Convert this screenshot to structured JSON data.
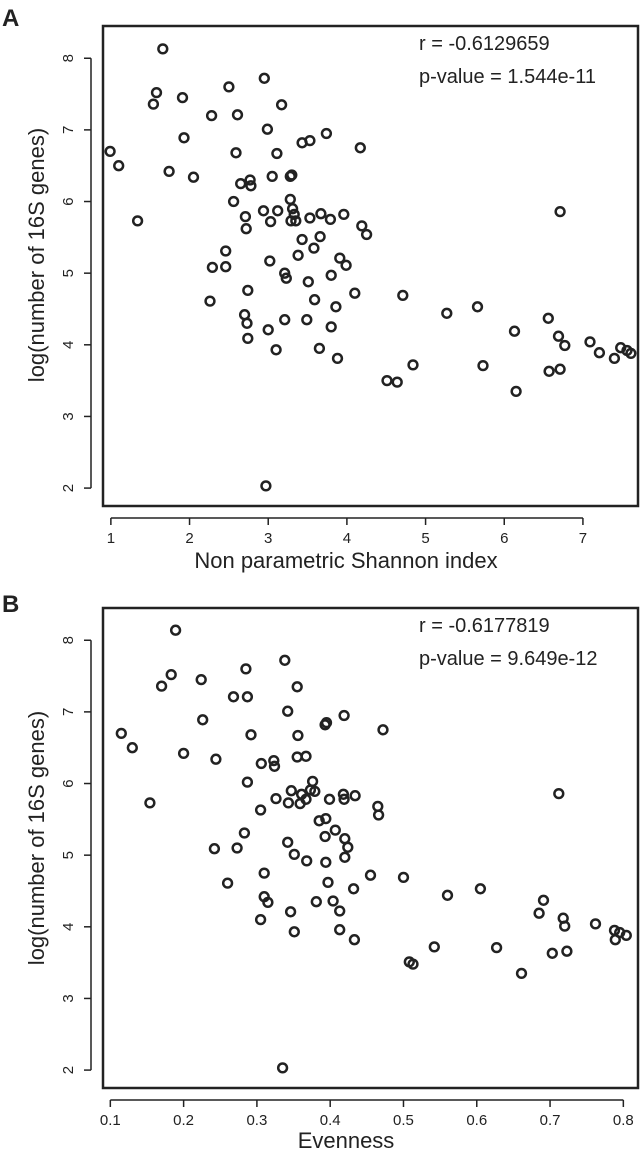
{
  "panels": [
    {
      "label": "A",
      "annotation": {
        "r": "r = -0.6129659",
        "p": "p-value = 1.544e-11"
      }
    },
    {
      "label": "B",
      "annotation": {
        "r": "r = -0.6177819",
        "p": "p-value = 9.649e-12"
      }
    }
  ],
  "chart_data": [
    {
      "type": "scatter",
      "title": "",
      "xlabel": "Non parametric Shannon index",
      "ylabel": "log(number of 16S genes)",
      "xlim": [
        0.9,
        7.7
      ],
      "ylim": [
        1.75,
        8.45
      ],
      "xticks": [
        1,
        2,
        3,
        4,
        5,
        6,
        7
      ],
      "yticks": [
        2,
        3,
        4,
        5,
        6,
        7,
        8
      ],
      "grid": false,
      "marker": "open-circle",
      "color": "#222222",
      "points": [
        [
          1.66,
          8.13
        ],
        [
          1.58,
          7.52
        ],
        [
          1.54,
          7.36
        ],
        [
          1.91,
          7.45
        ],
        [
          2.5,
          7.6
        ],
        [
          2.95,
          7.72
        ],
        [
          3.17,
          7.35
        ],
        [
          2.28,
          7.2
        ],
        [
          2.61,
          7.21
        ],
        [
          2.99,
          7.01
        ],
        [
          1.93,
          6.89
        ],
        [
          3.53,
          6.85
        ],
        [
          3.43,
          6.82
        ],
        [
          3.74,
          6.95
        ],
        [
          4.17,
          6.75
        ],
        [
          0.99,
          6.7
        ],
        [
          1.1,
          6.5
        ],
        [
          1.74,
          6.42
        ],
        [
          2.05,
          6.34
        ],
        [
          2.59,
          6.68
        ],
        [
          3.11,
          6.67
        ],
        [
          3.3,
          6.37
        ],
        [
          3.28,
          6.35
        ],
        [
          3.05,
          6.35
        ],
        [
          2.77,
          6.3
        ],
        [
          2.65,
          6.25
        ],
        [
          2.78,
          6.22
        ],
        [
          3.28,
          6.03
        ],
        [
          2.56,
          6.0
        ],
        [
          1.34,
          5.73
        ],
        [
          2.94,
          5.87
        ],
        [
          3.12,
          5.87
        ],
        [
          3.31,
          5.9
        ],
        [
          3.33,
          5.82
        ],
        [
          3.29,
          5.73
        ],
        [
          3.35,
          5.73
        ],
        [
          3.03,
          5.72
        ],
        [
          2.71,
          5.79
        ],
        [
          2.72,
          5.62
        ],
        [
          3.53,
          5.77
        ],
        [
          3.67,
          5.83
        ],
        [
          3.79,
          5.75
        ],
        [
          3.96,
          5.82
        ],
        [
          4.19,
          5.66
        ],
        [
          4.25,
          5.54
        ],
        [
          3.66,
          5.51
        ],
        [
          3.43,
          5.47
        ],
        [
          3.58,
          5.35
        ],
        [
          2.46,
          5.31
        ],
        [
          3.38,
          5.25
        ],
        [
          3.91,
          5.21
        ],
        [
          3.99,
          5.11
        ],
        [
          2.29,
          5.08
        ],
        [
          2.46,
          5.09
        ],
        [
          3.02,
          5.17
        ],
        [
          3.21,
          5.0
        ],
        [
          3.23,
          4.93
        ],
        [
          3.51,
          4.88
        ],
        [
          3.8,
          4.97
        ],
        [
          2.74,
          4.76
        ],
        [
          2.26,
          4.61
        ],
        [
          3.59,
          4.63
        ],
        [
          4.1,
          4.72
        ],
        [
          3.86,
          4.53
        ],
        [
          4.71,
          4.69
        ],
        [
          5.27,
          4.44
        ],
        [
          5.66,
          4.53
        ],
        [
          6.56,
          4.37
        ],
        [
          2.7,
          4.42
        ],
        [
          2.73,
          4.3
        ],
        [
          3.21,
          4.35
        ],
        [
          3.49,
          4.35
        ],
        [
          3.8,
          4.25
        ],
        [
          3.0,
          4.21
        ],
        [
          2.74,
          4.09
        ],
        [
          3.1,
          3.93
        ],
        [
          3.65,
          3.95
        ],
        [
          3.88,
          3.81
        ],
        [
          6.13,
          4.19
        ],
        [
          6.69,
          4.12
        ],
        [
          7.09,
          4.04
        ],
        [
          4.84,
          3.72
        ],
        [
          5.73,
          3.71
        ],
        [
          6.77,
          3.99
        ],
        [
          7.21,
          3.89
        ],
        [
          7.48,
          3.96
        ],
        [
          7.56,
          3.92
        ],
        [
          7.61,
          3.88
        ],
        [
          7.4,
          3.81
        ],
        [
          6.57,
          3.63
        ],
        [
          6.71,
          3.66
        ],
        [
          4.51,
          3.5
        ],
        [
          4.64,
          3.48
        ],
        [
          6.15,
          3.35
        ],
        [
          6.71,
          5.86
        ],
        [
          2.97,
          2.03
        ]
      ]
    },
    {
      "type": "scatter",
      "title": "",
      "xlabel": "Evenness",
      "ylabel": "log(number of 16S genes)",
      "xlim": [
        0.09,
        0.82
      ],
      "ylim": [
        1.75,
        8.45
      ],
      "xticks": [
        0.1,
        0.2,
        0.3,
        0.4,
        0.5,
        0.6,
        0.7,
        0.8
      ],
      "xtick_labels": [
        "0.1",
        "0.2",
        "0.3",
        "0.4",
        "0.5",
        "0.6",
        "0.7",
        "0.8"
      ],
      "yticks": [
        2,
        3,
        4,
        5,
        6,
        7,
        8
      ],
      "grid": false,
      "marker": "open-circle",
      "color": "#222222",
      "points": [
        [
          0.189,
          8.14
        ],
        [
          0.183,
          7.52
        ],
        [
          0.17,
          7.36
        ],
        [
          0.224,
          7.45
        ],
        [
          0.285,
          7.6
        ],
        [
          0.338,
          7.72
        ],
        [
          0.355,
          7.35
        ],
        [
          0.268,
          7.21
        ],
        [
          0.287,
          7.21
        ],
        [
          0.342,
          7.01
        ],
        [
          0.226,
          6.89
        ],
        [
          0.393,
          6.82
        ],
        [
          0.395,
          6.85
        ],
        [
          0.419,
          6.95
        ],
        [
          0.472,
          6.75
        ],
        [
          0.115,
          6.7
        ],
        [
          0.13,
          6.5
        ],
        [
          0.2,
          6.42
        ],
        [
          0.244,
          6.34
        ],
        [
          0.292,
          6.68
        ],
        [
          0.356,
          6.67
        ],
        [
          0.355,
          6.37
        ],
        [
          0.367,
          6.38
        ],
        [
          0.306,
          6.28
        ],
        [
          0.323,
          6.32
        ],
        [
          0.324,
          6.24
        ],
        [
          0.287,
          6.02
        ],
        [
          0.376,
          6.03
        ],
        [
          0.154,
          5.73
        ],
        [
          0.347,
          5.9
        ],
        [
          0.361,
          5.85
        ],
        [
          0.373,
          5.91
        ],
        [
          0.379,
          5.89
        ],
        [
          0.367,
          5.78
        ],
        [
          0.359,
          5.72
        ],
        [
          0.343,
          5.73
        ],
        [
          0.326,
          5.79
        ],
        [
          0.305,
          5.63
        ],
        [
          0.399,
          5.78
        ],
        [
          0.418,
          5.85
        ],
        [
          0.419,
          5.78
        ],
        [
          0.434,
          5.83
        ],
        [
          0.465,
          5.68
        ],
        [
          0.466,
          5.56
        ],
        [
          0.394,
          5.51
        ],
        [
          0.385,
          5.48
        ],
        [
          0.407,
          5.35
        ],
        [
          0.393,
          5.26
        ],
        [
          0.283,
          5.31
        ],
        [
          0.342,
          5.18
        ],
        [
          0.42,
          5.23
        ],
        [
          0.424,
          5.11
        ],
        [
          0.242,
          5.09
        ],
        [
          0.273,
          5.1
        ],
        [
          0.351,
          5.01
        ],
        [
          0.368,
          4.92
        ],
        [
          0.394,
          4.9
        ],
        [
          0.42,
          4.97
        ],
        [
          0.31,
          4.75
        ],
        [
          0.26,
          4.61
        ],
        [
          0.397,
          4.62
        ],
        [
          0.455,
          4.72
        ],
        [
          0.432,
          4.53
        ],
        [
          0.5,
          4.69
        ],
        [
          0.56,
          4.44
        ],
        [
          0.605,
          4.53
        ],
        [
          0.691,
          4.37
        ],
        [
          0.31,
          4.42
        ],
        [
          0.315,
          4.34
        ],
        [
          0.381,
          4.35
        ],
        [
          0.404,
          4.36
        ],
        [
          0.413,
          4.22
        ],
        [
          0.346,
          4.21
        ],
        [
          0.305,
          4.1
        ],
        [
          0.351,
          3.93
        ],
        [
          0.413,
          3.96
        ],
        [
          0.433,
          3.82
        ],
        [
          0.685,
          4.19
        ],
        [
          0.718,
          4.12
        ],
        [
          0.762,
          4.04
        ],
        [
          0.542,
          3.72
        ],
        [
          0.627,
          3.71
        ],
        [
          0.72,
          4.01
        ],
        [
          0.788,
          3.95
        ],
        [
          0.795,
          3.92
        ],
        [
          0.804,
          3.88
        ],
        [
          0.789,
          3.82
        ],
        [
          0.703,
          3.63
        ],
        [
          0.723,
          3.66
        ],
        [
          0.508,
          3.51
        ],
        [
          0.513,
          3.48
        ],
        [
          0.661,
          3.35
        ],
        [
          0.712,
          5.86
        ],
        [
          0.335,
          2.03
        ]
      ]
    }
  ]
}
